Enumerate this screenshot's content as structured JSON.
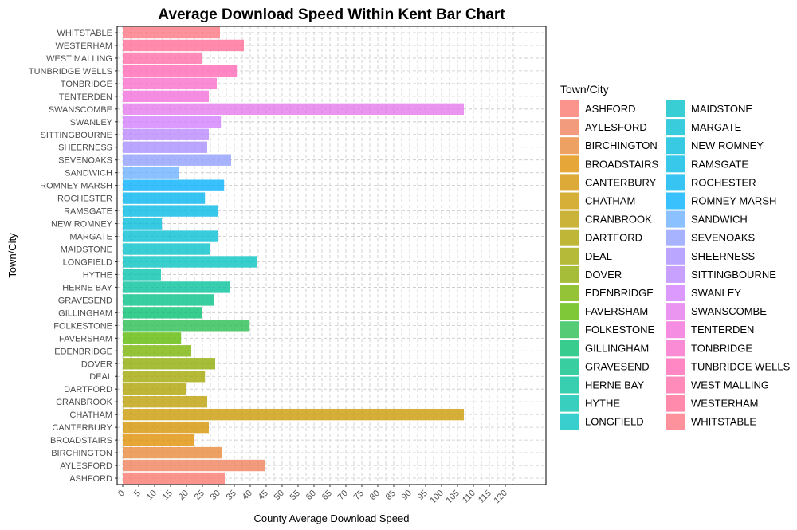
{
  "chart_data": {
    "type": "bar",
    "orientation": "horizontal",
    "title": "Average Download Speed Within Kent Bar Chart",
    "xlabel": "County Average Download Speed",
    "ylabel": "Town/City",
    "xlim": [
      0,
      120
    ],
    "xticks": [
      0,
      5,
      10,
      15,
      20,
      25,
      30,
      35,
      40,
      45,
      50,
      55,
      60,
      65,
      70,
      75,
      80,
      85,
      90,
      95,
      100,
      105,
      110,
      115,
      120
    ],
    "grid": true,
    "legend_title": "Town/City",
    "legend_position": "right",
    "categories": [
      "ASHFORD",
      "AYLESFORD",
      "BIRCHINGTON",
      "BROADSTAIRS",
      "CANTERBURY",
      "CHATHAM",
      "CRANBROOK",
      "DARTFORD",
      "DEAL",
      "DOVER",
      "EDENBRIDGE",
      "FAVERSHAM",
      "FOLKESTONE",
      "GILLINGHAM",
      "GRAVESEND",
      "HERNE BAY",
      "HYTHE",
      "LONGFIELD",
      "MAIDSTONE",
      "MARGATE",
      "NEW ROMNEY",
      "RAMSGATE",
      "ROCHESTER",
      "ROMNEY MARSH",
      "SANDWICH",
      "SEVENOAKS",
      "SHEERNESS",
      "SITTINGBOURNE",
      "SWANLEY",
      "SWANSCOMBE",
      "TENTERDEN",
      "TONBRIDGE",
      "TUNBRIDGE WELLS",
      "WEST MALLING",
      "WESTERHAM",
      "WHITSTABLE"
    ],
    "values": [
      32.0,
      44.5,
      31.0,
      22.5,
      27.0,
      107.0,
      26.5,
      20.0,
      25.8,
      29.0,
      21.5,
      18.3,
      39.8,
      25.0,
      28.5,
      33.5,
      12.0,
      42.0,
      27.5,
      29.8,
      12.3,
      30.0,
      25.8,
      31.8,
      17.5,
      34.0,
      26.5,
      27.0,
      30.8,
      107.0,
      27.0,
      29.5,
      35.8,
      25.0,
      38.0,
      30.5
    ],
    "colors": [
      "#F8766D",
      "#F07F59",
      "#E88839",
      "#DF8E00",
      "#D39200",
      "#C99800",
      "#BB9D00",
      "#ADA200",
      "#A0A600",
      "#8CAB00",
      "#77B200",
      "#5BB900",
      "#25BD4E",
      "#00BF6E",
      "#00C084",
      "#00C29B",
      "#00C1AC",
      "#00C1C0",
      "#00C0C8",
      "#00BED3",
      "#00BBDB",
      "#00B9E3",
      "#00B4EF",
      "#00AFFB",
      "#6BB0FF",
      "#8E9DFF",
      "#A68DFF",
      "#B886FF",
      "#D27DFF",
      "#E477EB",
      "#F26EDB",
      "#F96CC9",
      "#FF65B4",
      "#FF6AA6",
      "#FF6994",
      "#FC7381"
    ]
  }
}
